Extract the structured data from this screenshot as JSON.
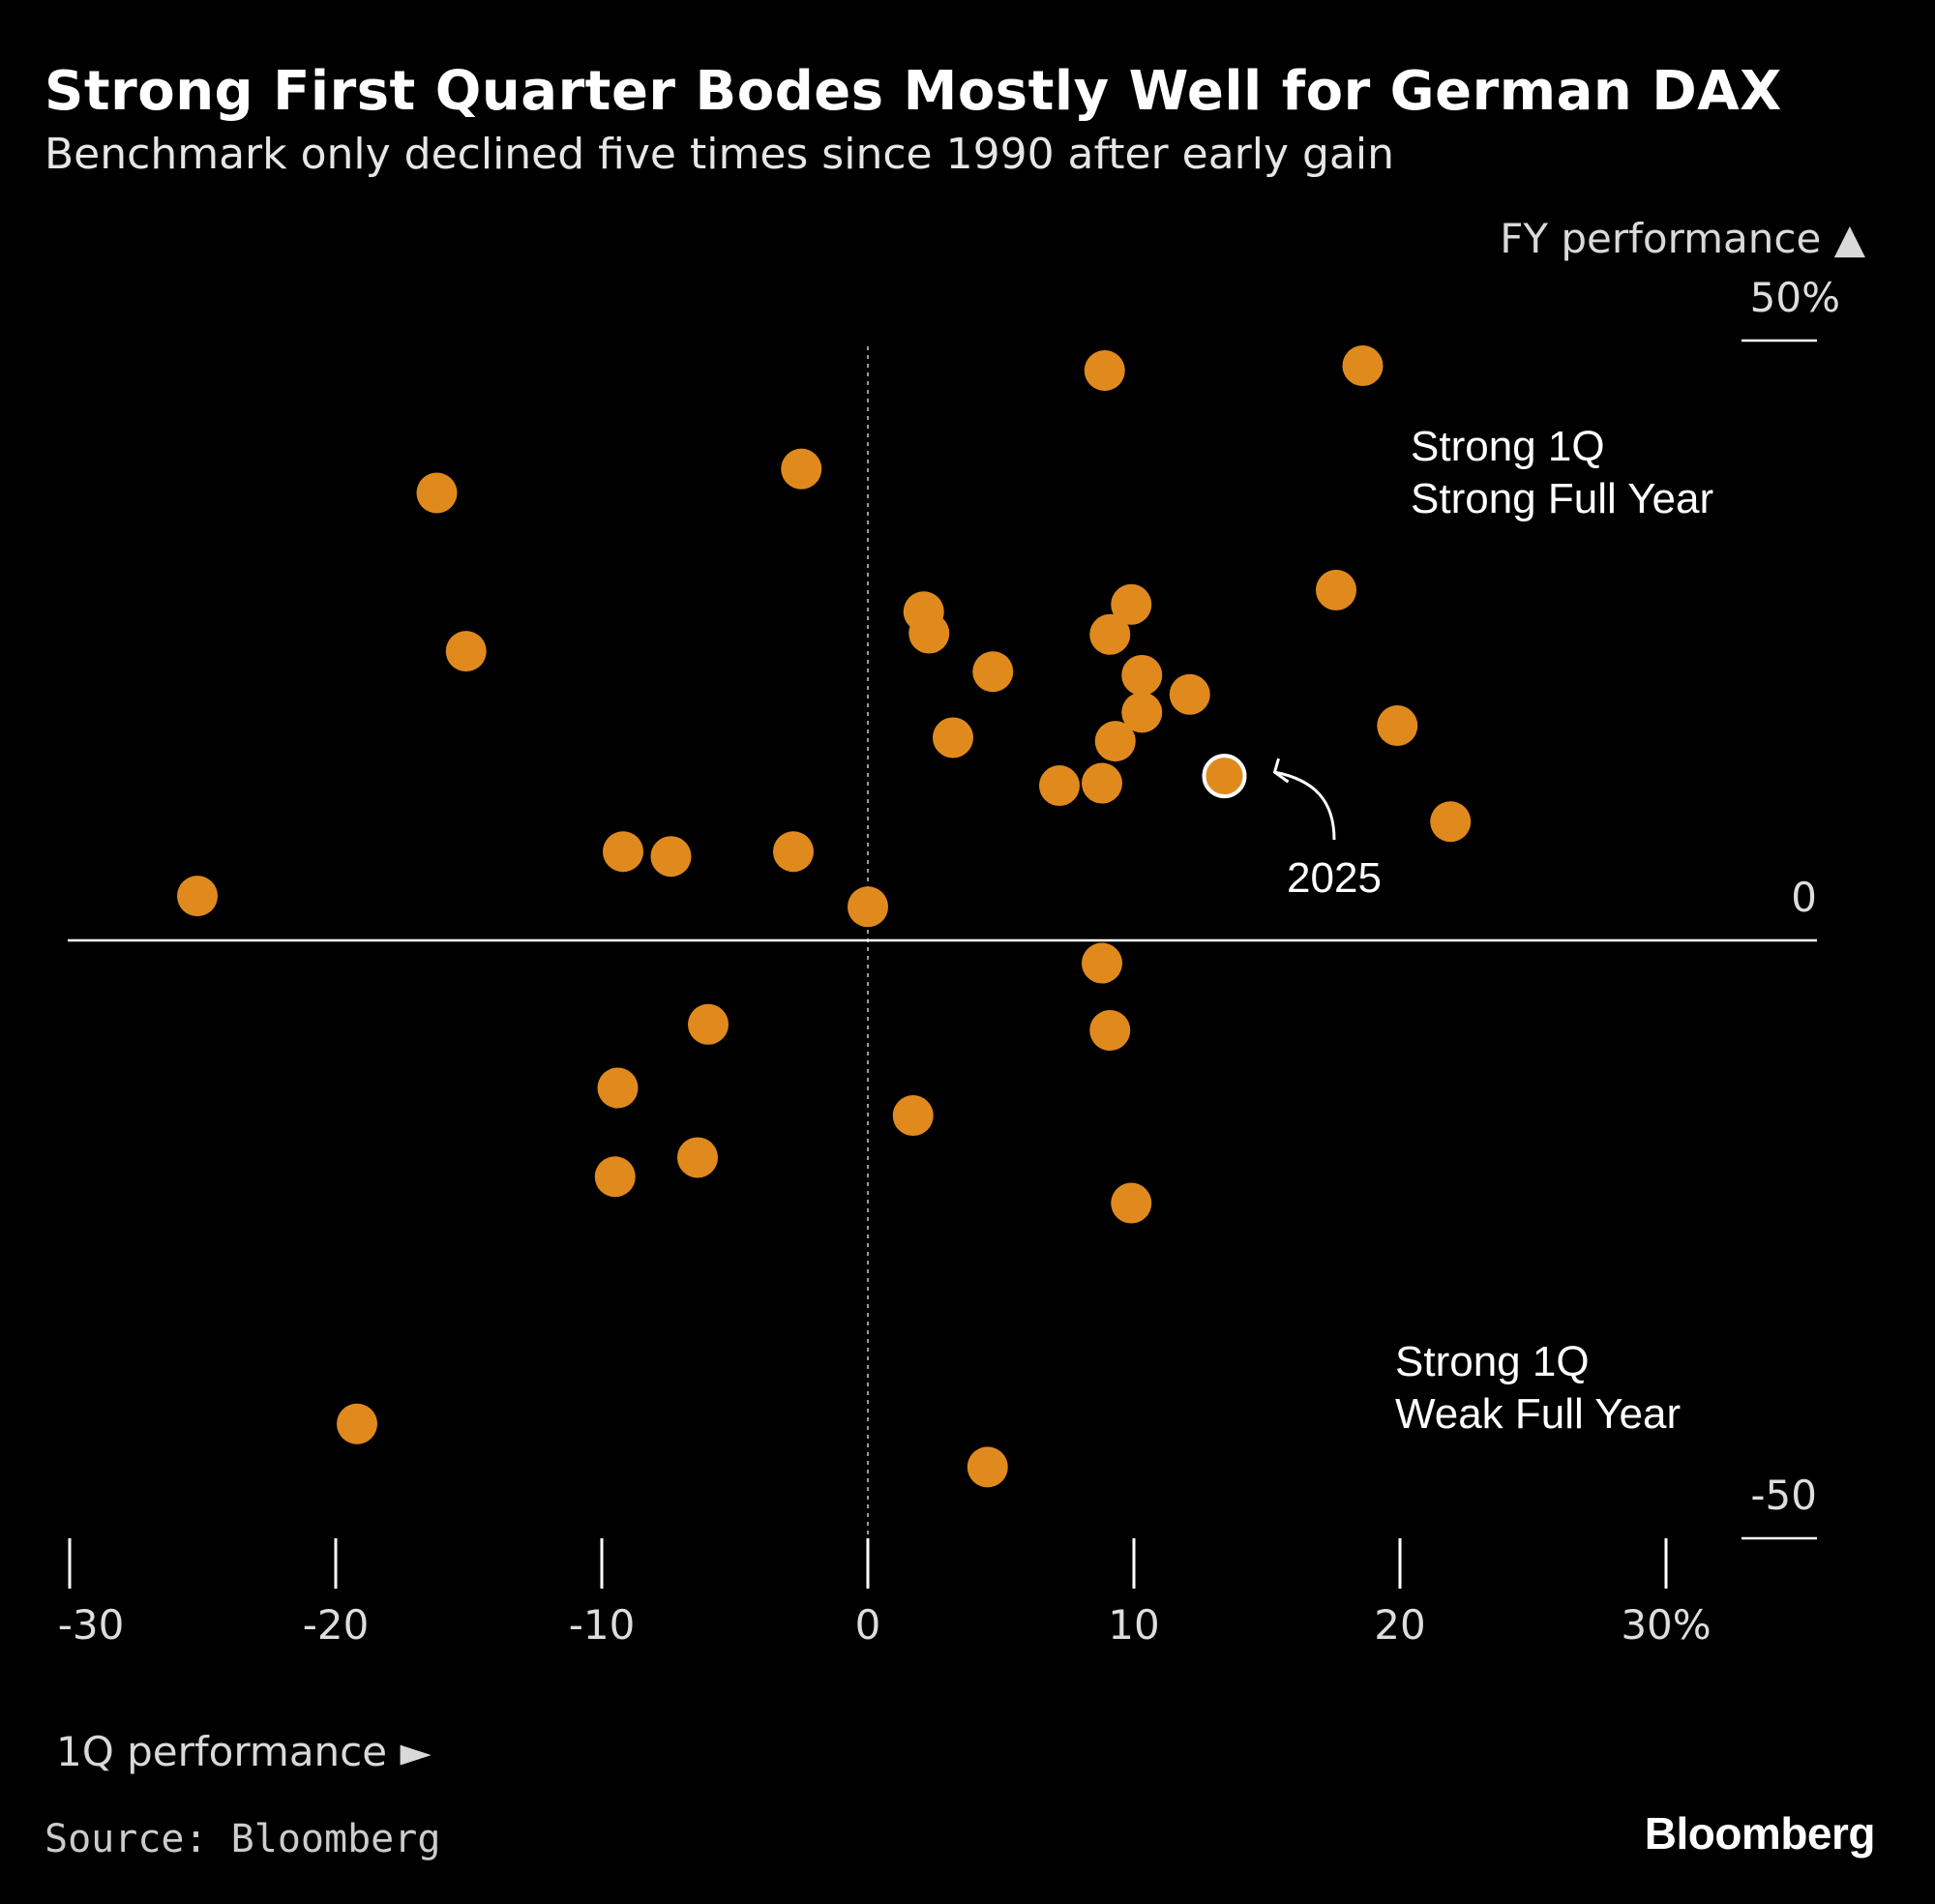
{
  "header": {
    "title": "Strong First Quarter Bodes Mostly Well for German DAX",
    "subtitle": "Benchmark only declined five times since 1990 after early gain"
  },
  "footer": {
    "source": "Source: Bloomberg",
    "logo": "Bloomberg"
  },
  "colors": {
    "background": "#000000",
    "point": "#E08A1E",
    "highlight_stroke": "#FFFFFF",
    "axis": "#FFFFFF"
  },
  "chart_data": {
    "type": "scatter",
    "title": "Strong First Quarter Bodes Mostly Well for German DAX",
    "subtitle": "Benchmark only declined five times since 1990 after early gain",
    "xlabel": "1Q performance ►",
    "ylabel": "FY performance ▲",
    "xlim": [
      -30,
      35
    ],
    "ylim": [
      -50,
      50
    ],
    "x_ticks": [
      -30,
      -20,
      -10,
      0,
      10,
      20,
      30
    ],
    "x_tick_labels": [
      "-30",
      "-20",
      "-10",
      "0",
      "10",
      "20",
      "30%"
    ],
    "y_tick_labels": {
      "top": "50%",
      "zero": "0",
      "bottom": "-50"
    },
    "grid": false,
    "legend": "none",
    "quadrant_labels": [
      {
        "line1": "Strong 1Q",
        "line2": "Strong Full Year"
      },
      {
        "line1": "Strong 1Q",
        "line2": "Weak Full Year"
      }
    ],
    "highlight": {
      "label": "2025",
      "x": 13.4,
      "y": 13.7
    },
    "points": [
      {
        "x": 8.9,
        "y": 47.5
      },
      {
        "x": 18.6,
        "y": 47.9
      },
      {
        "x": -16.2,
        "y": 37.3
      },
      {
        "x": -2.5,
        "y": 39.3
      },
      {
        "x": -15.1,
        "y": 24.1
      },
      {
        "x": 2.1,
        "y": 27.4
      },
      {
        "x": 2.3,
        "y": 25.6
      },
      {
        "x": 9.9,
        "y": 28.0
      },
      {
        "x": 9.1,
        "y": 25.5
      },
      {
        "x": 17.6,
        "y": 29.2
      },
      {
        "x": 4.7,
        "y": 22.4
      },
      {
        "x": 10.3,
        "y": 22.1
      },
      {
        "x": 12.1,
        "y": 20.5
      },
      {
        "x": 10.3,
        "y": 19.0
      },
      {
        "x": 19.9,
        "y": 17.9
      },
      {
        "x": 3.2,
        "y": 16.9
      },
      {
        "x": 9.3,
        "y": 16.6
      },
      {
        "x": 7.2,
        "y": 12.9
      },
      {
        "x": 8.8,
        "y": 13.1
      },
      {
        "x": 21.9,
        "y": 9.9
      },
      {
        "x": -9.2,
        "y": 7.4
      },
      {
        "x": -7.4,
        "y": 7.0
      },
      {
        "x": -2.8,
        "y": 7.4
      },
      {
        "x": -25.2,
        "y": 3.7
      },
      {
        "x": 0.0,
        "y": 2.8
      },
      {
        "x": 8.8,
        "y": -1.9
      },
      {
        "x": 9.1,
        "y": -7.5
      },
      {
        "x": -6.0,
        "y": -7.0
      },
      {
        "x": -9.4,
        "y": -12.3
      },
      {
        "x": 1.7,
        "y": -14.6
      },
      {
        "x": -6.4,
        "y": -18.1
      },
      {
        "x": -9.5,
        "y": -19.7
      },
      {
        "x": 9.9,
        "y": -21.9
      },
      {
        "x": -19.2,
        "y": -40.3
      },
      {
        "x": 4.5,
        "y": -43.9
      }
    ]
  }
}
